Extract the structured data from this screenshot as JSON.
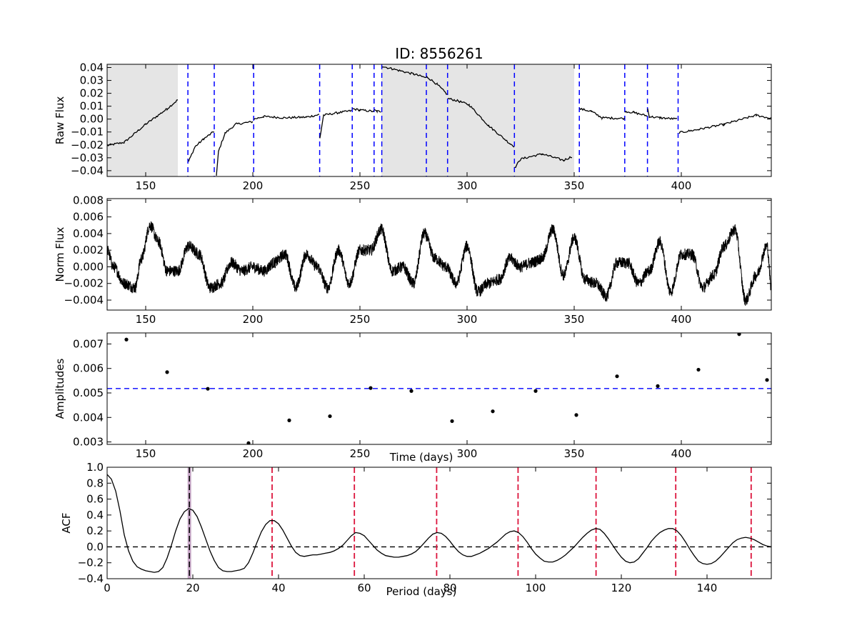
{
  "figure": {
    "title": "ID: 8556261"
  },
  "chart_data": [
    {
      "type": "line",
      "name": "raw-flux",
      "ylabel": "Raw Flux",
      "xlabel": "",
      "xlim": [
        132,
        442
      ],
      "ylim": [
        -0.0445,
        0.0425
      ],
      "xticks": [
        150,
        200,
        250,
        300,
        350,
        400
      ],
      "xtick_labels": [
        "150",
        "200",
        "250",
        "300",
        "350",
        "400"
      ],
      "yticks": [
        -0.04,
        -0.03,
        -0.02,
        -0.01,
        0.0,
        0.01,
        0.02,
        0.03,
        0.04
      ],
      "ytick_labels": [
        "−0.04",
        "−0.03",
        "−0.02",
        "−0.01",
        "0.00",
        "0.01",
        "0.02",
        "0.03",
        "0.04"
      ],
      "shaded_regions": [
        [
          132,
          165
        ],
        [
          260,
          350
        ]
      ],
      "vlines": [
        169.7,
        182,
        200.4,
        231.2,
        246.4,
        256.6,
        260.2,
        281,
        290.9,
        322.1,
        352.4,
        373.6,
        384.2,
        398.5
      ],
      "segments": [
        {
          "x": [
            132,
            140,
            150,
            160,
            165
          ],
          "y": [
            -0.0205,
            -0.018,
            -0.004,
            0.008,
            0.015
          ]
        },
        {
          "x": [
            170,
            173,
            177,
            182
          ],
          "y": [
            -0.033,
            -0.0215,
            -0.0155,
            -0.0095
          ]
        },
        {
          "x": [
            183,
            184,
            187,
            192,
            200
          ],
          "y": [
            -0.044,
            -0.025,
            -0.011,
            -0.004,
            -0.002
          ]
        },
        {
          "x": [
            200.5,
            205,
            215,
            225,
            231
          ],
          "y": [
            0.0,
            0.002,
            0.001,
            0.0015,
            0.0035
          ]
        },
        {
          "x": [
            231.3,
            233,
            240,
            246
          ],
          "y": [
            -0.015,
            0.003,
            0.005,
            0.0065
          ]
        },
        {
          "x": [
            246.5,
            250,
            256.5
          ],
          "y": [
            0.008,
            0.007,
            0.006
          ]
        },
        {
          "x": [
            256.7,
            258,
            259.8
          ],
          "y": [
            0.007,
            0.006,
            0.006
          ]
        },
        {
          "x": [
            260.3,
            265,
            275,
            281
          ],
          "y": [
            0.041,
            0.039,
            0.035,
            0.032
          ]
        },
        {
          "x": [
            281.1,
            286,
            290.8
          ],
          "y": [
            0.033,
            0.027,
            0.019
          ]
        },
        {
          "x": [
            291,
            296,
            301,
            310,
            320,
            322
          ],
          "y": [
            0.016,
            0.014,
            0.011,
            -0.005,
            -0.019,
            -0.021
          ]
        },
        {
          "x": [
            322.2,
            325,
            335,
            345,
            349
          ],
          "y": [
            -0.038,
            -0.031,
            -0.027,
            -0.032,
            -0.029
          ]
        },
        {
          "x": [
            352.5,
            358,
            363,
            373.5
          ],
          "y": [
            0.008,
            0.006,
            0.001,
            0.0005
          ]
        },
        {
          "x": [
            373.7,
            378,
            384
          ],
          "y": [
            0.006,
            0.005,
            0.0025
          ]
        },
        {
          "x": [
            384.3,
            385,
            390,
            398
          ],
          "y": [
            0.008,
            0.002,
            0.001,
            0.0
          ]
        },
        {
          "x": [
            399,
            408,
            420,
            435,
            442
          ],
          "y": [
            -0.0105,
            -0.008,
            -0.004,
            0.003,
            0.0005
          ]
        }
      ]
    },
    {
      "type": "line",
      "name": "norm-flux",
      "ylabel": "Norm Flux",
      "xlabel": "",
      "xlim": [
        132,
        442
      ],
      "ylim": [
        -0.0052,
        0.0082
      ],
      "xticks": [
        150,
        200,
        250,
        300,
        350,
        400
      ],
      "xtick_labels": [
        "150",
        "200",
        "250",
        "300",
        "350",
        "400"
      ],
      "yticks": [
        -0.004,
        -0.002,
        0.0,
        0.002,
        0.004,
        0.006,
        0.008
      ],
      "ytick_labels": [
        "−0.004",
        "−0.002",
        "0.000",
        "0.002",
        "0.004",
        "0.006",
        "0.008"
      ],
      "x": [
        132,
        135,
        140,
        145,
        148,
        152,
        156,
        160,
        165,
        170,
        175,
        180,
        185,
        190,
        195,
        200,
        205,
        210,
        215,
        220,
        225,
        230,
        235,
        240,
        245,
        250,
        255,
        260,
        265,
        270,
        275,
        280,
        285,
        290,
        295,
        300,
        305,
        310,
        315,
        320,
        325,
        330,
        335,
        340,
        345,
        350,
        355,
        360,
        365,
        370,
        375,
        380,
        385,
        390,
        395,
        400,
        405,
        410,
        415,
        420,
        425,
        430,
        435,
        440,
        442
      ],
      "y": [
        0.002,
        0.0,
        -0.002,
        -0.0025,
        0.001,
        0.005,
        0.003,
        -0.0005,
        -0.0005,
        0.0025,
        0.0015,
        -0.0025,
        -0.002,
        0.0005,
        -0.0005,
        0.0,
        -0.0005,
        0.0005,
        0.0015,
        -0.0025,
        0.0015,
        0.0,
        -0.0025,
        0.002,
        -0.002,
        0.002,
        0.002,
        0.0045,
        -0.0005,
        0.0,
        -0.002,
        0.004,
        0.001,
        0.0,
        -0.002,
        0.0025,
        -0.003,
        -0.002,
        -0.0015,
        0.001,
        0.0,
        0.0005,
        0.001,
        0.0045,
        -0.001,
        0.0035,
        -0.0015,
        -0.002,
        -0.0035,
        0.0005,
        0.0005,
        -0.002,
        -0.0005,
        0.003,
        -0.003,
        0.0015,
        0.0015,
        -0.0025,
        -0.001,
        0.0025,
        0.0045,
        -0.004,
        -0.001,
        0.0025,
        -0.0025
      ],
      "noise_amplitude": 0.0007
    },
    {
      "type": "scatter",
      "name": "amplitudes",
      "ylabel": "Amplitudes",
      "xlabel": "Time (days)",
      "xlim": [
        132,
        442
      ],
      "ylim": [
        0.0029,
        0.00745
      ],
      "xticks": [
        150,
        200,
        250,
        300,
        350,
        400
      ],
      "xtick_labels": [
        "150",
        "200",
        "250",
        "300",
        "350",
        "400"
      ],
      "yticks": [
        0.003,
        0.004,
        0.005,
        0.006,
        0.007
      ],
      "ytick_labels": [
        "0.003",
        "0.004",
        "0.005",
        "0.006",
        "0.007"
      ],
      "hline": 0.00518,
      "x": [
        141,
        160,
        179,
        198,
        217,
        236,
        255,
        274,
        293,
        312,
        332,
        351,
        370,
        389,
        408,
        427,
        440
      ],
      "y": [
        0.00718,
        0.00585,
        0.00517,
        0.00295,
        0.00388,
        0.00405,
        0.0052,
        0.00508,
        0.00385,
        0.00425,
        0.00508,
        0.0041,
        0.00568,
        0.00528,
        0.00595,
        0.0074,
        0.00553
      ]
    },
    {
      "type": "line",
      "name": "acf",
      "ylabel": "ACF",
      "xlabel": "Period (days)",
      "xlim": [
        0,
        155
      ],
      "ylim": [
        -0.4,
        1.0
      ],
      "xticks": [
        0,
        20,
        40,
        60,
        80,
        100,
        120,
        140
      ],
      "xtick_labels": [
        "0",
        "20",
        "40",
        "60",
        "80",
        "100",
        "120",
        "140"
      ],
      "yticks": [
        -0.4,
        -0.2,
        0.0,
        0.2,
        0.4,
        0.6,
        0.8,
        1.0
      ],
      "ytick_labels": [
        "−0.4",
        "−0.2",
        "0.0",
        "0.2",
        "0.4",
        "0.6",
        "0.8",
        "1.0"
      ],
      "hline": 0.0,
      "period_line": 19.2,
      "harmonic_lines": [
        38.5,
        57.7,
        76.9,
        95.9,
        114.1,
        132.7,
        150.3
      ],
      "x": [
        0,
        1,
        2,
        3,
        4,
        5,
        6,
        7,
        8,
        9,
        10,
        11,
        12,
        13,
        14,
        15,
        16,
        17,
        18,
        19,
        20,
        21,
        22,
        23,
        24,
        25,
        26,
        27,
        28,
        29,
        30,
        31,
        32,
        33,
        34,
        35,
        36,
        37,
        38,
        39,
        40,
        41,
        42,
        43,
        44,
        45,
        46,
        47,
        48,
        49,
        50,
        51,
        52,
        53,
        54,
        55,
        56,
        57,
        58,
        59,
        60,
        61,
        62,
        63,
        64,
        65,
        66,
        67,
        68,
        69,
        70,
        71,
        72,
        73,
        74,
        75,
        76,
        77,
        78,
        79,
        80,
        81,
        82,
        83,
        84,
        85,
        86,
        87,
        88,
        89,
        90,
        91,
        92,
        93,
        94,
        95,
        96,
        97,
        98,
        99,
        100,
        101,
        102,
        103,
        104,
        105,
        106,
        107,
        108,
        109,
        110,
        111,
        112,
        113,
        114,
        115,
        116,
        117,
        118,
        119,
        120,
        121,
        122,
        123,
        124,
        125,
        126,
        127,
        128,
        129,
        130,
        131,
        132,
        133,
        134,
        135,
        136,
        137,
        138,
        139,
        140,
        141,
        142,
        143,
        144,
        145,
        146,
        147,
        148,
        149,
        150,
        151,
        152,
        153,
        154,
        155
      ],
      "y": [
        0.91,
        0.85,
        0.7,
        0.45,
        0.15,
        -0.05,
        -0.18,
        -0.25,
        -0.28,
        -0.3,
        -0.31,
        -0.32,
        -0.31,
        -0.26,
        -0.14,
        0.02,
        0.2,
        0.35,
        0.44,
        0.48,
        0.46,
        0.38,
        0.25,
        0.1,
        -0.05,
        -0.17,
        -0.26,
        -0.3,
        -0.31,
        -0.31,
        -0.3,
        -0.29,
        -0.27,
        -0.2,
        -0.08,
        0.06,
        0.19,
        0.28,
        0.33,
        0.33,
        0.29,
        0.21,
        0.11,
        0.01,
        -0.07,
        -0.11,
        -0.12,
        -0.11,
        -0.1,
        -0.1,
        -0.09,
        -0.08,
        -0.07,
        -0.05,
        -0.02,
        0.02,
        0.08,
        0.14,
        0.18,
        0.17,
        0.14,
        0.08,
        0.02,
        -0.04,
        -0.08,
        -0.11,
        -0.12,
        -0.13,
        -0.13,
        -0.12,
        -0.11,
        -0.09,
        -0.06,
        -0.01,
        0.05,
        0.11,
        0.16,
        0.18,
        0.17,
        0.13,
        0.07,
        0.0,
        -0.06,
        -0.1,
        -0.12,
        -0.12,
        -0.1,
        -0.08,
        -0.05,
        -0.02,
        0.02,
        0.06,
        0.11,
        0.16,
        0.19,
        0.2,
        0.18,
        0.13,
        0.06,
        -0.02,
        -0.09,
        -0.14,
        -0.18,
        -0.19,
        -0.19,
        -0.17,
        -0.14,
        -0.1,
        -0.05,
        0.0,
        0.06,
        0.12,
        0.17,
        0.21,
        0.23,
        0.22,
        0.17,
        0.1,
        0.02,
        -0.06,
        -0.13,
        -0.18,
        -0.2,
        -0.19,
        -0.15,
        -0.08,
        -0.01,
        0.07,
        0.13,
        0.18,
        0.21,
        0.23,
        0.23,
        0.2,
        0.14,
        0.06,
        -0.03,
        -0.11,
        -0.18,
        -0.21,
        -0.22,
        -0.21,
        -0.18,
        -0.13,
        -0.07,
        -0.01,
        0.05,
        0.09,
        0.11,
        0.12,
        0.11,
        0.09,
        0.06,
        0.03,
        0.01,
        0.0
      ]
    }
  ]
}
